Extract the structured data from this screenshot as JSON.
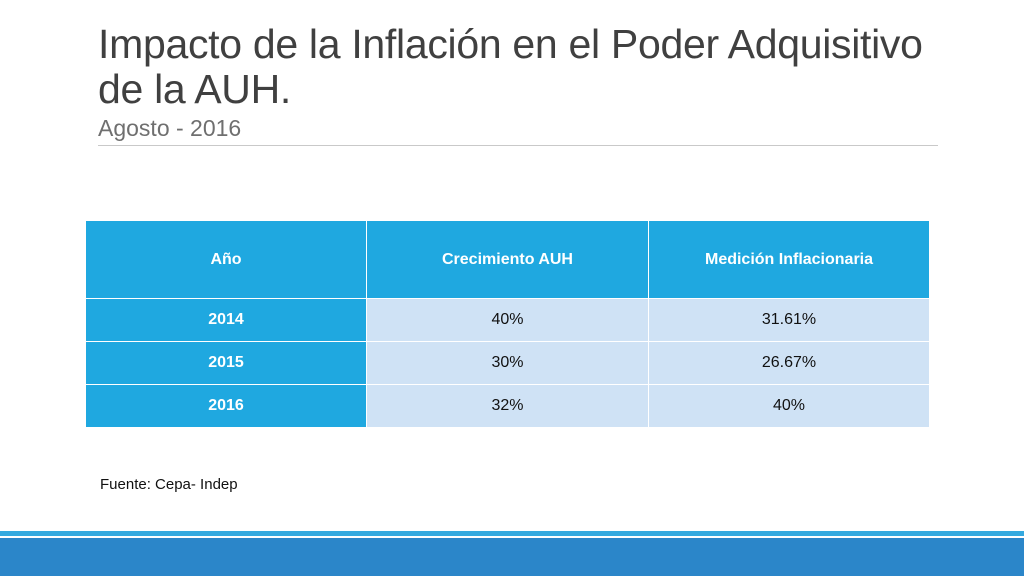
{
  "slide": {
    "title": "Impacto de la Inflación en el Poder Adquisitivo de la AUH.",
    "subtitle": "Agosto - 2016",
    "source": "Fuente: Cepa- Indep"
  },
  "table": {
    "headers": [
      "Año",
      "Crecimiento AUH",
      "Medición Inflacionaria"
    ],
    "rows": [
      [
        "2014",
        "40%",
        "31.61%"
      ],
      [
        "2015",
        "30%",
        "26.67%"
      ],
      [
        "2016",
        "32%",
        "40%"
      ]
    ]
  },
  "colors": {
    "header_bg": "#1fa8e0",
    "cell_bg": "#cfe2f5",
    "footer_bar": "#2b86c9",
    "footer_line": "#34a9df"
  }
}
